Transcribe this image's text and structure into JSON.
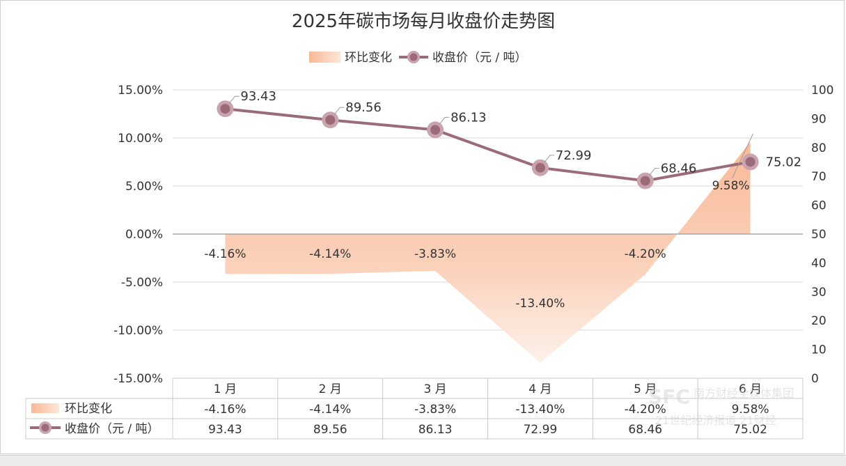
{
  "chart_data": {
    "type": "line",
    "title": "2025年碳市场每月收盘价走势图",
    "categories": [
      "1 月",
      "2 月",
      "3 月",
      "4 月",
      "5 月",
      "6 月"
    ],
    "series": [
      {
        "name": "环比变化",
        "type": "area",
        "axis": "left",
        "values": [
          -4.16,
          -4.14,
          -3.83,
          -13.4,
          -4.2,
          9.58
        ],
        "labels": [
          "-4.16%",
          "-4.14%",
          "-3.83%",
          "-13.40%",
          "-4.20%",
          "9.58%"
        ],
        "color": "#f9bfa0"
      },
      {
        "name": "收盘价（元 / 吨）",
        "type": "line",
        "axis": "right",
        "values": [
          93.43,
          89.56,
          86.13,
          72.99,
          68.46,
          75.02
        ],
        "labels": [
          "93.43",
          "89.56",
          "86.13",
          "72.99",
          "68.46",
          "75.02"
        ],
        "color": "#9b6b78"
      }
    ],
    "y_left": {
      "ylim": [
        -15,
        15
      ],
      "ticks": [
        "15.00%",
        "10.00%",
        "5.00%",
        "0.00%",
        "-5.00%",
        "-10.00%",
        "-15.00%"
      ]
    },
    "y_right": {
      "ylim": [
        0,
        100
      ],
      "ticks": [
        "100",
        "90",
        "80",
        "70",
        "60",
        "50",
        "40",
        "30",
        "20",
        "10",
        "0"
      ]
    },
    "grid": true,
    "legend_position": "top-center",
    "data_table": true
  },
  "watermark": {
    "line1": "南方财经全媒体集团",
    "line2": "21世纪经济报道 21财经"
  }
}
